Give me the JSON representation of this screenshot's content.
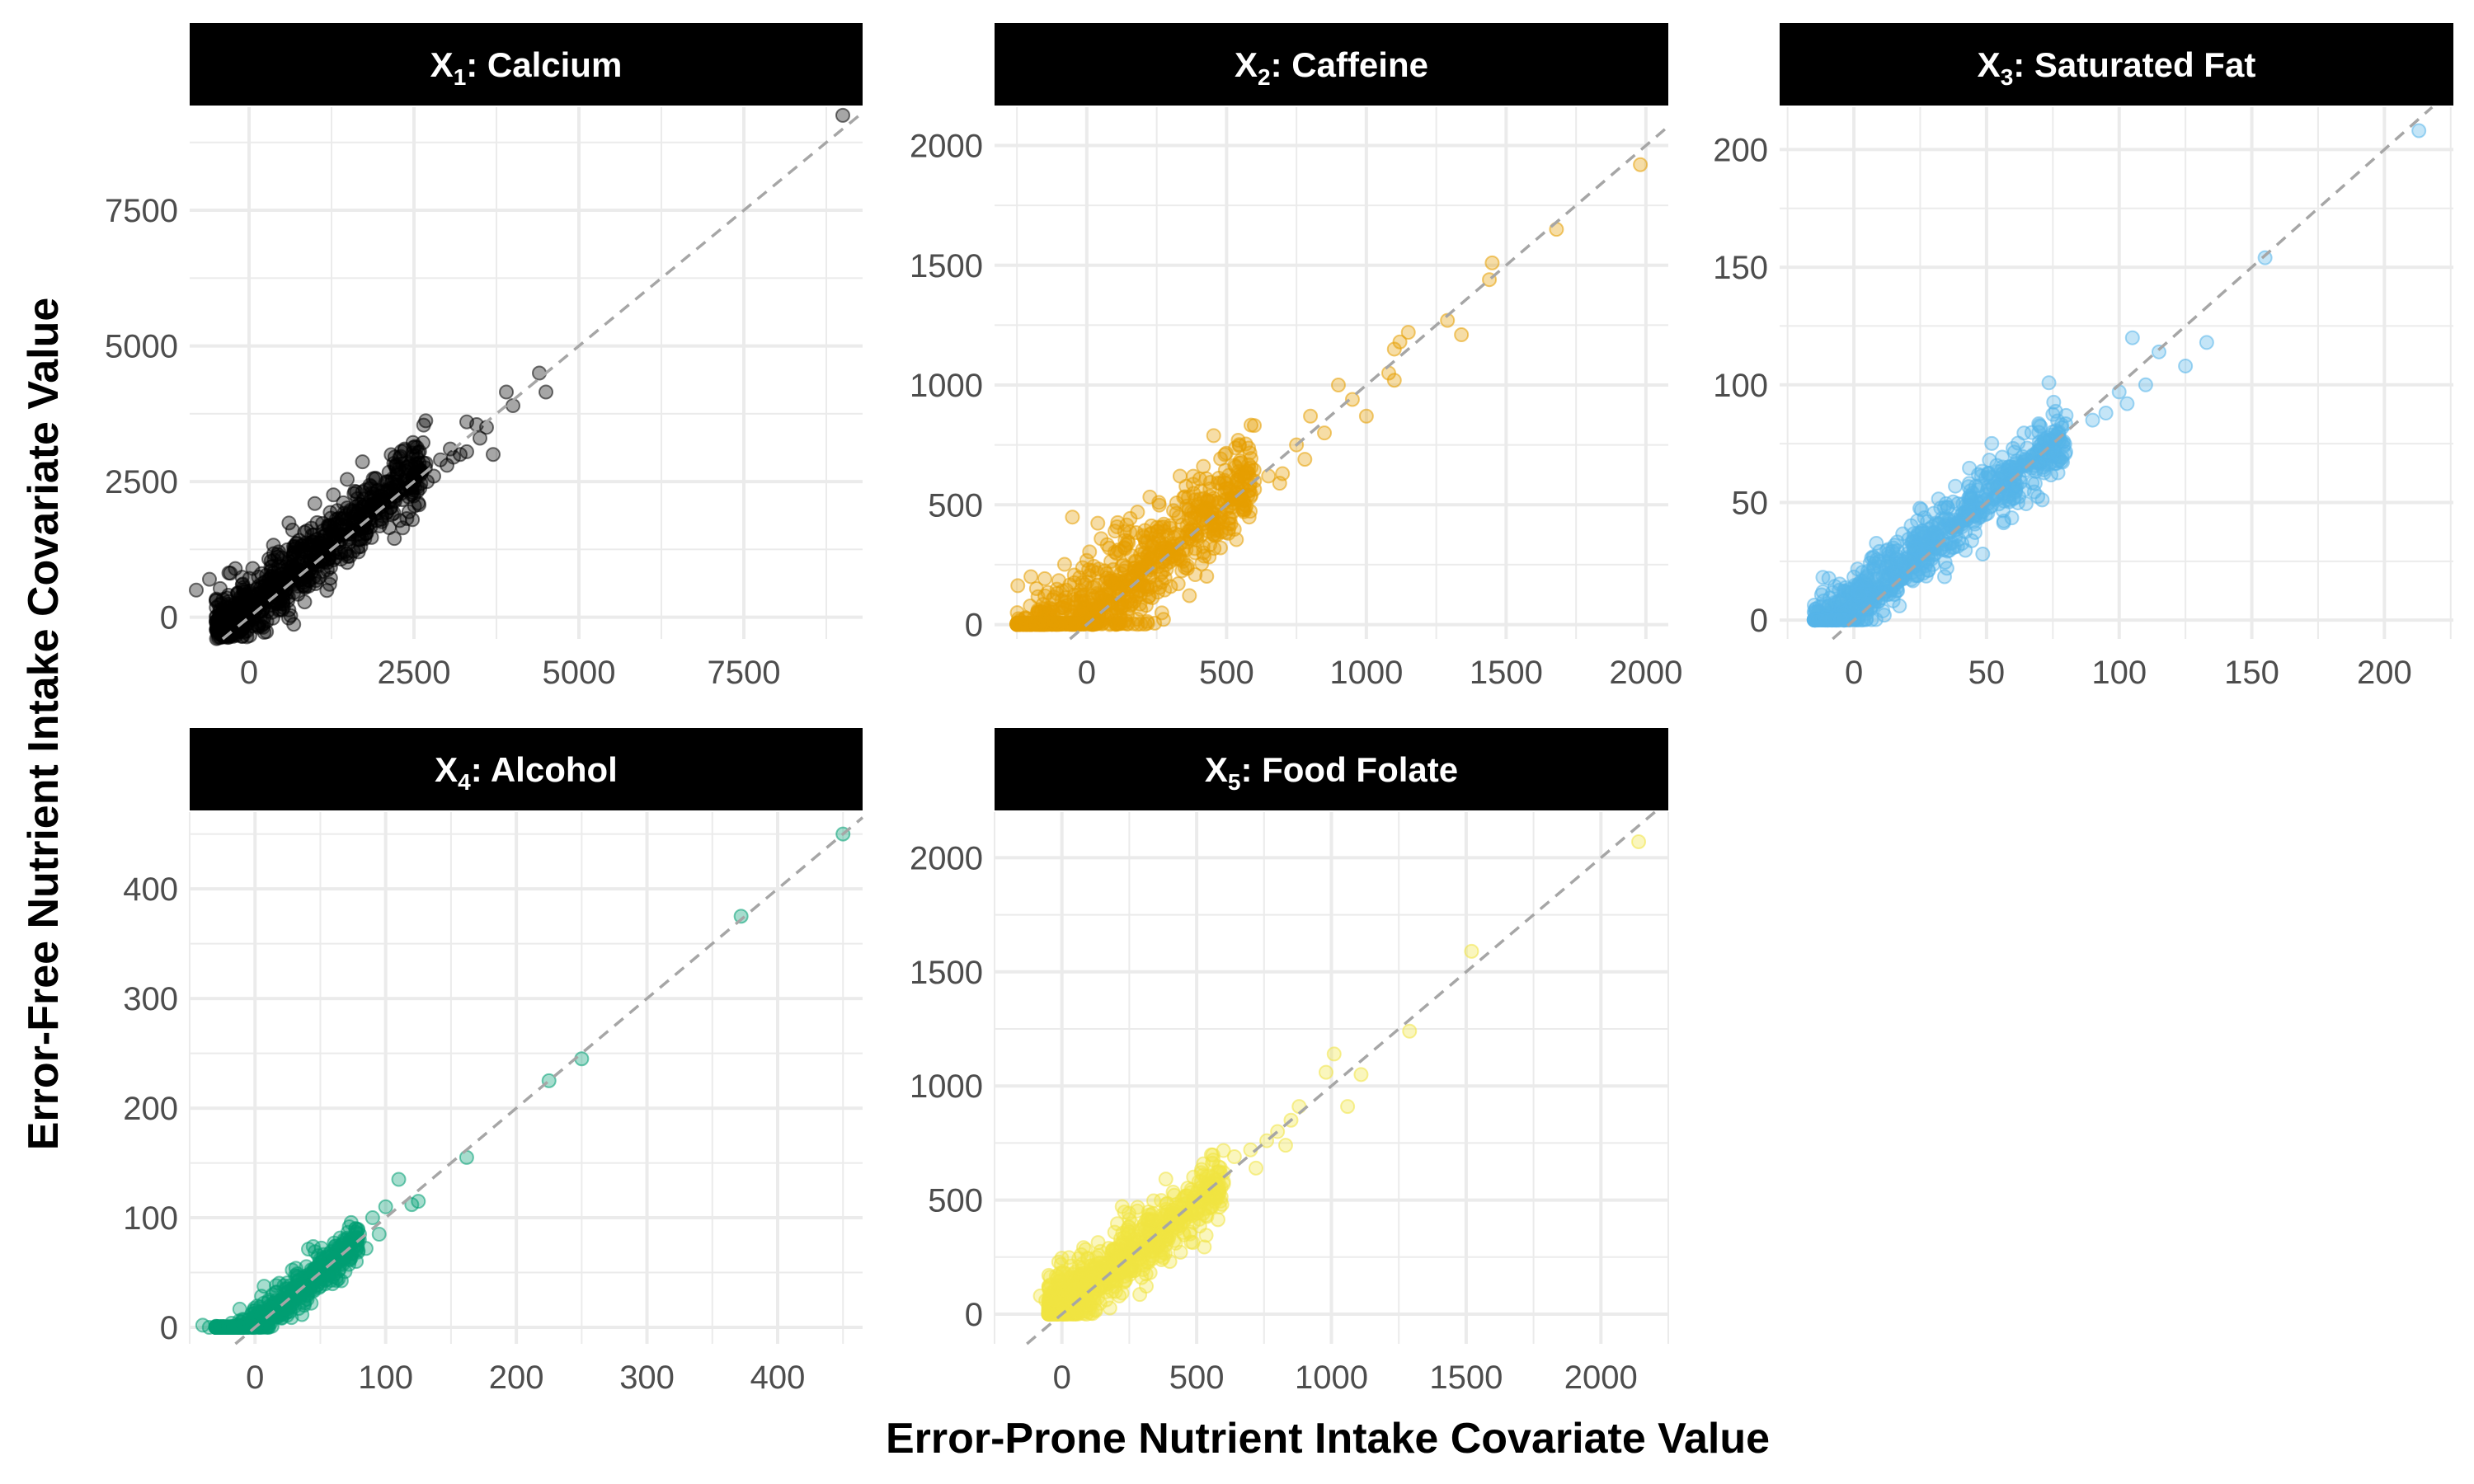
{
  "figure": {
    "xlabel": "Error-Prone Nutrient Intake Covariate Value",
    "ylabel": "Error-Free Nutrient Intake Covariate Value"
  },
  "reference_line_color": "#a6a6a6",
  "strip_color": "#000000",
  "chart_data": [
    {
      "type": "scatter",
      "title_var": "X",
      "title_sub": "1",
      "title_rest": ": Calcium",
      "color": "#000000",
      "xlim": [
        -900,
        9300
      ],
      "ylim": [
        -400,
        9400
      ],
      "xticks": [
        0,
        2500,
        5000,
        7500
      ],
      "xtick_labels": [
        "0",
        "2500",
        "5000",
        "7500"
      ],
      "yticks": [
        0,
        2500,
        5000,
        7500
      ],
      "ytick_labels": [
        "0",
        "2500",
        "5000",
        "7500"
      ],
      "grid": true,
      "reference_line": "y = x",
      "points": [
        [
          3300,
          3600
        ],
        [
          3450,
          3550
        ],
        [
          3600,
          3500
        ],
        [
          3500,
          3300
        ],
        [
          3300,
          3050
        ],
        [
          3200,
          3000
        ],
        [
          3100,
          2950
        ],
        [
          3700,
          3000
        ],
        [
          3900,
          4150
        ],
        [
          4000,
          3900
        ],
        [
          4400,
          4500
        ],
        [
          4500,
          4150
        ],
        [
          9000,
          9250
        ],
        [
          2600,
          2700
        ],
        [
          2700,
          2500
        ],
        [
          2800,
          2600
        ],
        [
          2900,
          2900
        ],
        [
          3000,
          2800
        ],
        [
          3050,
          3100
        ],
        [
          -800,
          500
        ],
        [
          -600,
          700
        ],
        [
          -500,
          300
        ]
      ],
      "cluster": {
        "n": 900,
        "x_min": -500,
        "x_max": 2700,
        "slope": 1.0,
        "intercept": 150,
        "spread": 420
      }
    },
    {
      "type": "scatter",
      "title_var": "X",
      "title_sub": "2",
      "title_rest": ": Caffeine",
      "color": "#E69F00",
      "xlim": [
        -330,
        2080
      ],
      "ylim": [
        -60,
        2160
      ],
      "xticks": [
        0,
        500,
        1000,
        1500,
        2000
      ],
      "xtick_labels": [
        "0",
        "500",
        "1000",
        "1500",
        "2000"
      ],
      "yticks": [
        0,
        500,
        1000,
        1500,
        2000
      ],
      "ytick_labels": [
        "0",
        "500",
        "1000",
        "1500",
        "2000"
      ],
      "grid": true,
      "reference_line": "y = x",
      "points": [
        [
          1980,
          1920
        ],
        [
          1680,
          1650
        ],
        [
          1450,
          1510
        ],
        [
          1440,
          1440
        ],
        [
          1290,
          1270
        ],
        [
          1340,
          1210
        ],
        [
          1150,
          1220
        ],
        [
          1100,
          1150
        ],
        [
          1120,
          1180
        ],
        [
          1080,
          1050
        ],
        [
          1100,
          1020
        ],
        [
          900,
          1000
        ],
        [
          950,
          940
        ],
        [
          1000,
          870
        ],
        [
          800,
          870
        ],
        [
          850,
          800
        ],
        [
          750,
          750
        ],
        [
          780,
          690
        ],
        [
          700,
          630
        ],
        [
          690,
          590
        ],
        [
          600,
          600
        ],
        [
          580,
          560
        ],
        [
          650,
          620
        ],
        [
          -200,
          200
        ],
        [
          -180,
          150
        ],
        [
          -150,
          120
        ]
      ],
      "cluster": {
        "n": 1000,
        "x_min": -250,
        "x_max": 600,
        "slope": 0.95,
        "intercept": 40,
        "spread": 140,
        "floor": 0
      }
    },
    {
      "type": "scatter",
      "title_var": "X",
      "title_sub": "3",
      "title_rest": ": Saturated Fat",
      "color": "#56B4E9",
      "xlim": [
        -28,
        226
      ],
      "ylim": [
        -8,
        218
      ],
      "xticks": [
        0,
        50,
        100,
        150,
        200
      ],
      "xtick_labels": [
        "0",
        "50",
        "100",
        "150",
        "200"
      ],
      "yticks": [
        0,
        50,
        100,
        150,
        200
      ],
      "ytick_labels": [
        "0",
        "50",
        "100",
        "150",
        "200"
      ],
      "grid": true,
      "reference_line": "y = x",
      "points": [
        [
          213,
          208
        ],
        [
          155,
          154
        ],
        [
          105,
          120
        ],
        [
          133,
          118
        ],
        [
          125,
          108
        ],
        [
          115,
          114
        ],
        [
          110,
          100
        ],
        [
          100,
          97
        ],
        [
          103,
          92
        ],
        [
          95,
          88
        ],
        [
          90,
          85
        ],
        [
          80,
          87
        ],
        [
          75,
          80
        ],
        [
          78,
          76
        ],
        [
          70,
          74
        ],
        [
          72,
          70
        ],
        [
          65,
          68
        ],
        [
          60,
          73
        ]
      ],
      "cluster": {
        "n": 900,
        "x_min": -15,
        "x_max": 80,
        "slope": 0.92,
        "intercept": 6,
        "spread": 9,
        "floor": 0
      }
    },
    {
      "type": "scatter",
      "title_var": "X",
      "title_sub": "4",
      "title_rest": ": Alcohol",
      "color": "#009E73",
      "xlim": [
        -50,
        465
      ],
      "ylim": [
        -15,
        470
      ],
      "xticks": [
        0,
        100,
        200,
        300,
        400
      ],
      "xtick_labels": [
        "0",
        "100",
        "200",
        "300",
        "400"
      ],
      "yticks": [
        0,
        100,
        200,
        300,
        400
      ],
      "ytick_labels": [
        "0",
        "100",
        "200",
        "300",
        "400"
      ],
      "grid": true,
      "reference_line": "y = x",
      "points": [
        [
          450,
          450
        ],
        [
          372,
          375
        ],
        [
          250,
          245
        ],
        [
          225,
          225
        ],
        [
          162,
          155
        ],
        [
          110,
          135
        ],
        [
          125,
          115
        ],
        [
          120,
          112
        ],
        [
          100,
          110
        ],
        [
          90,
          100
        ],
        [
          95,
          85
        ],
        [
          80,
          85
        ],
        [
          75,
          78
        ],
        [
          85,
          72
        ],
        [
          70,
          70
        ],
        [
          65,
          60
        ],
        [
          -40,
          2
        ],
        [
          -35,
          0
        ],
        [
          -30,
          1
        ]
      ],
      "cluster": {
        "n": 700,
        "x_min": -30,
        "x_max": 80,
        "slope": 0.95,
        "intercept": 2,
        "spread": 12,
        "floor": 0
      }
    },
    {
      "type": "scatter",
      "title_var": "X",
      "title_sub": "5",
      "title_rest": ": Food Folate",
      "color": "#F0E442",
      "xlim": [
        -250,
        2250
      ],
      "ylim": [
        -130,
        2200
      ],
      "xticks": [
        0,
        500,
        1000,
        1500,
        2000
      ],
      "xtick_labels": [
        "0",
        "500",
        "1000",
        "1500",
        "2000"
      ],
      "yticks": [
        0,
        500,
        1000,
        1500,
        2000
      ],
      "ytick_labels": [
        "0",
        "500",
        "1000",
        "1500",
        "2000"
      ],
      "grid": true,
      "reference_line": "y = x",
      "points": [
        [
          2140,
          2070
        ],
        [
          1520,
          1590
        ],
        [
          1290,
          1240
        ],
        [
          1110,
          1050
        ],
        [
          1010,
          1140
        ],
        [
          1060,
          910
        ],
        [
          980,
          1060
        ],
        [
          880,
          910
        ],
        [
          850,
          850
        ],
        [
          800,
          800
        ],
        [
          830,
          740
        ],
        [
          760,
          760
        ],
        [
          700,
          720
        ],
        [
          720,
          640
        ],
        [
          640,
          690
        ],
        [
          600,
          620
        ],
        [
          560,
          600
        ],
        [
          -80,
          80
        ],
        [
          -60,
          60
        ]
      ],
      "cluster": {
        "n": 900,
        "x_min": -50,
        "x_max": 600,
        "slope": 0.9,
        "intercept": 35,
        "spread": 90,
        "floor": 0
      }
    }
  ]
}
